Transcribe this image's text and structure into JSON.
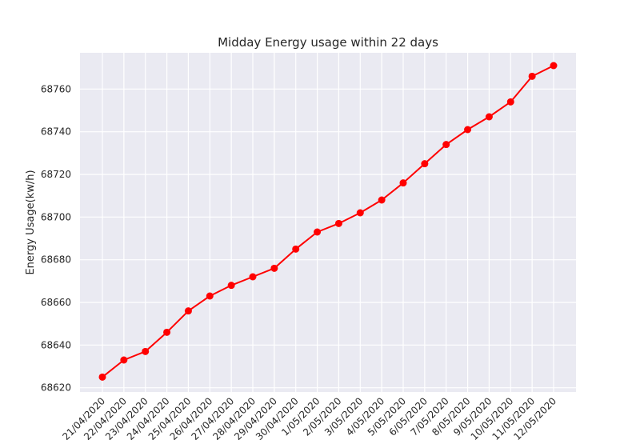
{
  "chart_data": {
    "type": "line",
    "title": "Midday Energy usage within 22 days",
    "xlabel": "",
    "ylabel": "Energy Usage(kw/h)",
    "categories": [
      "21/04/2020",
      "22/04/2020",
      "23/04/2020",
      "24/04/2020",
      "25/04/2020",
      "26/04/2020",
      "27/04/2020",
      "28/04/2020",
      "29/04/2020",
      "30/04/2020",
      "1/05/2020",
      "2/05/2020",
      "3/05/2020",
      "4/05/2020",
      "5/05/2020",
      "6/05/2020",
      "7/05/2020",
      "8/05/2020",
      "9/05/2020",
      "10/05/2020",
      "11/05/2020",
      "12/05/2020"
    ],
    "series": [
      {
        "values": [
          68625,
          68633,
          68637,
          68646,
          68656,
          68663,
          68668,
          68672,
          68676,
          68685,
          68693,
          68697,
          68702,
          68708,
          68716,
          68725,
          68734,
          68741,
          68747,
          68754,
          68766,
          68771
        ]
      }
    ],
    "ylim": [
      68618,
      68777
    ],
    "yticks": [
      68620,
      68640,
      68660,
      68680,
      68700,
      68720,
      68740,
      68760
    ],
    "grid": true,
    "colors": {
      "line": "#ff0000",
      "marker": "#ff0000",
      "background": "#eaeaf2",
      "grid": "#ffffff"
    }
  }
}
